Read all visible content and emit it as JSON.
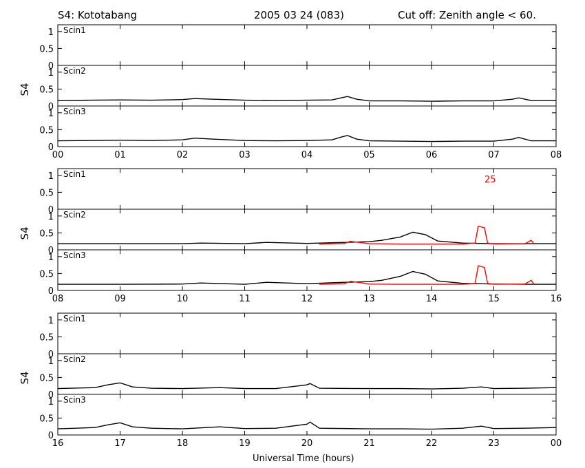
{
  "header": {
    "station": "S4: Kototabang",
    "date": "2005 03 24 (083)",
    "cutoff": "Cut off: Zenith angle < 60."
  },
  "xlabel": "Universal Time (hours)",
  "ylabel": "S4",
  "panel_labels": [
    "Scin1",
    "Scin2",
    "Scin3"
  ],
  "y_ticks": [
    "0",
    "0.5",
    "1"
  ],
  "red_annotation": "25",
  "colors": {
    "series": "#000000",
    "highlight": "#ff0000"
  },
  "chart_data": [
    {
      "type": "line",
      "row": 1,
      "xlim": [
        "00",
        "08"
      ],
      "x_ticks": [
        "00",
        "01",
        "02",
        "03",
        "04",
        "05",
        "06",
        "07",
        "08"
      ],
      "ylim": [
        0,
        1.2
      ],
      "panels": [
        {
          "label": "Scin1",
          "series": []
        },
        {
          "label": "Scin2",
          "series": [
            {
              "color": "#000000",
              "x": [
                0,
                0.5,
                1,
                1.5,
                2,
                2.2,
                2.5,
                3,
                3.5,
                4,
                4.4,
                4.55,
                4.65,
                4.8,
                5,
                5.5,
                6,
                6.5,
                7,
                7.3,
                7.4,
                7.6,
                8
              ],
              "y": [
                0.16,
                0.17,
                0.18,
                0.17,
                0.19,
                0.22,
                0.2,
                0.17,
                0.16,
                0.17,
                0.18,
                0.24,
                0.28,
                0.2,
                0.15,
                0.15,
                0.14,
                0.15,
                0.15,
                0.2,
                0.24,
                0.16,
                0.16
              ]
            }
          ]
        },
        {
          "label": "Scin3",
          "series": [
            {
              "color": "#000000",
              "x": [
                0,
                0.5,
                1,
                1.5,
                2,
                2.2,
                2.5,
                3,
                3.5,
                4,
                4.4,
                4.55,
                4.65,
                4.8,
                5,
                5.5,
                6,
                6.5,
                7,
                7.3,
                7.4,
                7.6,
                8
              ],
              "y": [
                0.17,
                0.18,
                0.19,
                0.18,
                0.2,
                0.25,
                0.22,
                0.18,
                0.17,
                0.18,
                0.2,
                0.28,
                0.33,
                0.22,
                0.17,
                0.16,
                0.15,
                0.16,
                0.16,
                0.22,
                0.27,
                0.17,
                0.17
              ]
            }
          ]
        }
      ]
    },
    {
      "type": "line",
      "row": 2,
      "xlim": [
        "08",
        "16"
      ],
      "x_ticks": [
        "08",
        "09",
        "10",
        "11",
        "12",
        "13",
        "14",
        "15",
        "16"
      ],
      "ylim": [
        0,
        1.2
      ],
      "panels": [
        {
          "label": "Scin1",
          "series": []
        },
        {
          "label": "Scin2",
          "series": [
            {
              "color": "#000000",
              "x": [
                8,
                9,
                10,
                10.3,
                11,
                11.35,
                12,
                12.6,
                13,
                13.2,
                13.5,
                13.7,
                13.9,
                14.1,
                14.5,
                15,
                15.5,
                16
              ],
              "y": [
                0.18,
                0.18,
                0.18,
                0.2,
                0.18,
                0.22,
                0.19,
                0.22,
                0.24,
                0.28,
                0.38,
                0.52,
                0.45,
                0.26,
                0.2,
                0.18,
                0.18,
                0.18
              ]
            },
            {
              "color": "#ff0000",
              "x": [
                12.2,
                12.6,
                12.7,
                13,
                13.5,
                14,
                14.5,
                14.7,
                14.75,
                14.85,
                14.9,
                15,
                15.5,
                15.6,
                15.65
              ],
              "y": [
                0.17,
                0.19,
                0.25,
                0.18,
                0.17,
                0.17,
                0.17,
                0.2,
                0.7,
                0.65,
                0.2,
                0.17,
                0.18,
                0.28,
                0.17
              ]
            }
          ]
        },
        {
          "label": "Scin3",
          "series": [
            {
              "color": "#000000",
              "x": [
                8,
                9,
                10,
                10.3,
                11,
                11.35,
                12,
                12.6,
                13,
                13.2,
                13.5,
                13.7,
                13.9,
                14.1,
                14.5,
                15,
                15.5,
                16
              ],
              "y": [
                0.18,
                0.18,
                0.19,
                0.22,
                0.18,
                0.24,
                0.2,
                0.24,
                0.26,
                0.3,
                0.42,
                0.56,
                0.48,
                0.28,
                0.21,
                0.19,
                0.18,
                0.18
              ]
            },
            {
              "color": "#ff0000",
              "x": [
                12.2,
                12.6,
                12.7,
                13,
                13.5,
                14,
                14.5,
                14.7,
                14.75,
                14.85,
                14.9,
                15,
                15.5,
                15.6,
                15.65
              ],
              "y": [
                0.18,
                0.2,
                0.27,
                0.19,
                0.18,
                0.18,
                0.18,
                0.21,
                0.73,
                0.68,
                0.21,
                0.18,
                0.19,
                0.3,
                0.18
              ]
            }
          ]
        }
      ]
    },
    {
      "type": "line",
      "row": 3,
      "xlim": [
        "16",
        "00"
      ],
      "x_ticks": [
        "16",
        "17",
        "18",
        "19",
        "20",
        "21",
        "22",
        "23",
        "00"
      ],
      "ylim": [
        0,
        1.2
      ],
      "panels": [
        {
          "label": "Scin1",
          "series": []
        },
        {
          "label": "Scin2",
          "series": [
            {
              "color": "#000000",
              "x": [
                16,
                16.6,
                16.8,
                17,
                17.2,
                17.5,
                18,
                18.6,
                19,
                19.5,
                20,
                20.05,
                20.2,
                21,
                21.5,
                22,
                22.5,
                22.8,
                23,
                23.5,
                24
              ],
              "y": [
                0.17,
                0.2,
                0.28,
                0.34,
                0.22,
                0.18,
                0.17,
                0.2,
                0.17,
                0.17,
                0.28,
                0.32,
                0.18,
                0.17,
                0.17,
                0.16,
                0.18,
                0.22,
                0.17,
                0.18,
                0.2
              ]
            }
          ]
        },
        {
          "label": "Scin3",
          "series": [
            {
              "color": "#000000",
              "x": [
                16,
                16.6,
                16.8,
                17,
                17.2,
                17.5,
                18,
                18.6,
                19,
                19.5,
                20,
                20.05,
                20.2,
                21,
                21.5,
                22,
                22.5,
                22.8,
                23,
                23.5,
                24
              ],
              "y": [
                0.18,
                0.22,
                0.3,
                0.36,
                0.24,
                0.2,
                0.18,
                0.24,
                0.19,
                0.2,
                0.32,
                0.38,
                0.2,
                0.18,
                0.18,
                0.17,
                0.2,
                0.26,
                0.19,
                0.2,
                0.22
              ]
            }
          ]
        }
      ]
    }
  ]
}
